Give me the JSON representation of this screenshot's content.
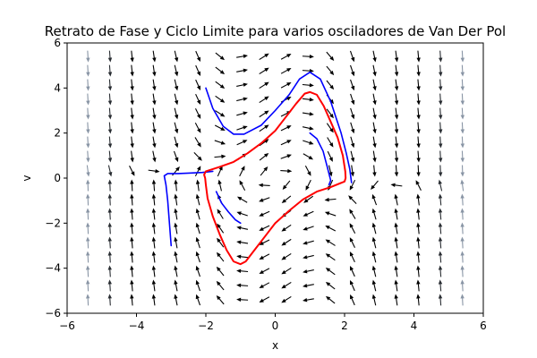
{
  "chart_data": {
    "type": "line",
    "title": "Retrato de Fase y Ciclo Limite para varios osciladores de Van Der Pol",
    "xlabel": "x",
    "ylabel": "v",
    "xlim": [
      -6,
      6
    ],
    "ylim": [
      -6,
      6
    ],
    "xticks": [
      -6,
      -4,
      -2,
      0,
      2,
      4,
      6
    ],
    "yticks": [
      -6,
      -4,
      -2,
      0,
      2,
      4,
      6
    ],
    "xtick_labels": [
      "−6",
      "−4",
      "−2",
      "0",
      "2",
      "4",
      "6"
    ],
    "ytick_labels": [
      "−6",
      "−4",
      "−2",
      "0",
      "2",
      "4",
      "6"
    ],
    "grid": false,
    "vector_field": {
      "system": "van der pol",
      "mu": 1,
      "x_range": [
        -5.4,
        5.4
      ],
      "v_range": [
        -5.4,
        5.4
      ],
      "n": 18,
      "color_slow": "#000000",
      "color_fast": "#a9b8cc"
    },
    "series": [
      {
        "color": "#0000ff",
        "points": [
          [
            -2.0,
            4.0
          ],
          [
            -1.8,
            3.1
          ],
          [
            -1.5,
            2.3
          ],
          [
            -1.2,
            1.95
          ],
          [
            -0.9,
            1.95
          ],
          [
            -0.4,
            2.35
          ],
          [
            0.0,
            3.0
          ],
          [
            0.4,
            3.7
          ],
          [
            0.7,
            4.4
          ],
          [
            1.0,
            4.7
          ],
          [
            1.3,
            4.4
          ],
          [
            1.6,
            3.4
          ],
          [
            1.9,
            2.0
          ],
          [
            2.05,
            1.1
          ],
          [
            2.15,
            0.4
          ],
          [
            2.2,
            -0.2
          ]
        ]
      },
      {
        "color": "#0000ff",
        "points": [
          [
            -3.0,
            -3.0
          ],
          [
            -3.05,
            -2.0
          ],
          [
            -3.1,
            -1.0
          ],
          [
            -3.15,
            -0.3
          ],
          [
            -3.2,
            0.1
          ],
          [
            -3.1,
            0.2
          ],
          [
            -2.8,
            0.2
          ],
          [
            -2.5,
            0.22
          ],
          [
            -2.1,
            0.25
          ],
          [
            -1.8,
            0.3
          ]
        ]
      },
      {
        "color": "#0000ff",
        "points": [
          [
            -1.7,
            -0.6
          ],
          [
            -1.55,
            -1.1
          ],
          [
            -1.35,
            -1.5
          ],
          [
            -1.15,
            -1.85
          ],
          [
            -1.0,
            -2.0
          ]
        ]
      },
      {
        "color": "#0000ff",
        "points": [
          [
            1.0,
            2.0
          ],
          [
            1.2,
            1.75
          ],
          [
            1.38,
            1.2
          ],
          [
            1.5,
            0.5
          ],
          [
            1.6,
            -0.1
          ],
          [
            1.55,
            -0.3
          ]
        ]
      },
      {
        "color": "#ff0000",
        "points": [
          [
            -2.02,
            0.0
          ],
          [
            -2.05,
            0.15
          ],
          [
            -2.0,
            0.3
          ],
          [
            -1.6,
            0.5
          ],
          [
            -1.2,
            0.72
          ],
          [
            -0.8,
            1.1
          ],
          [
            -0.4,
            1.55
          ],
          [
            0.0,
            2.1
          ],
          [
            0.3,
            2.7
          ],
          [
            0.6,
            3.3
          ],
          [
            0.85,
            3.75
          ],
          [
            1.0,
            3.82
          ],
          [
            1.2,
            3.7
          ],
          [
            1.4,
            3.2
          ],
          [
            1.6,
            2.5
          ],
          [
            1.8,
            1.8
          ],
          [
            1.95,
            1.0
          ],
          [
            2.02,
            0.3
          ],
          [
            2.03,
            0.0
          ],
          [
            2.0,
            -0.15
          ],
          [
            1.6,
            -0.4
          ],
          [
            1.2,
            -0.6
          ],
          [
            0.8,
            -0.95
          ],
          [
            0.4,
            -1.45
          ],
          [
            0.0,
            -2.0
          ],
          [
            -0.3,
            -2.6
          ],
          [
            -0.6,
            -3.2
          ],
          [
            -0.85,
            -3.7
          ],
          [
            -1.0,
            -3.82
          ],
          [
            -1.2,
            -3.7
          ],
          [
            -1.4,
            -3.2
          ],
          [
            -1.6,
            -2.5
          ],
          [
            -1.8,
            -1.7
          ],
          [
            -1.95,
            -0.9
          ],
          [
            -2.0,
            -0.3
          ],
          [
            -2.02,
            0.0
          ]
        ]
      }
    ]
  }
}
